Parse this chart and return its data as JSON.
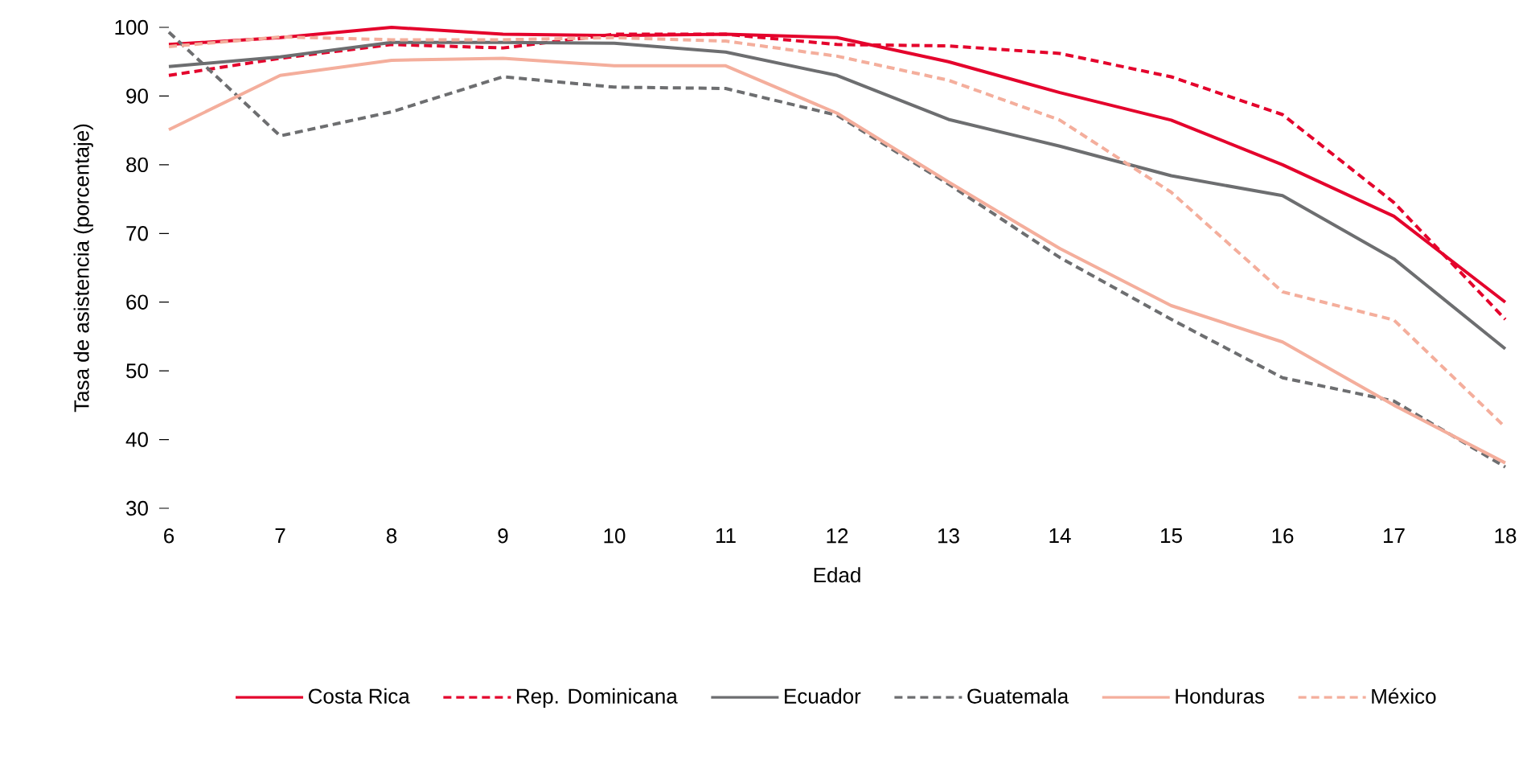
{
  "chart_data": {
    "type": "line",
    "xlabel": "Edad",
    "ylabel": "Tasa de asistencia (porcentaje)",
    "x": [
      6,
      7,
      8,
      9,
      10,
      11,
      12,
      13,
      14,
      15,
      16,
      17,
      18
    ],
    "xlim": [
      6,
      18
    ],
    "xticks": [
      6,
      7,
      8,
      9,
      10,
      11,
      12,
      13,
      14,
      15,
      16,
      17,
      18
    ],
    "ylim": [
      30,
      100
    ],
    "yticks": [
      30,
      40,
      50,
      60,
      70,
      80,
      90,
      100
    ],
    "legend": "bottom",
    "grid": false,
    "series": [
      {
        "name": "Costa Rica",
        "color": "#e4032c",
        "line_style": "solid",
        "values": [
          97.5,
          98.5,
          100,
          99,
          98.8,
          99,
          98.5,
          95,
          90.5,
          86.5,
          80,
          72.5,
          60
        ]
      },
      {
        "name": "Rep. Dominicana",
        "color": "#e4032c",
        "line_style": "dashed",
        "values": [
          93,
          95.5,
          97.5,
          97,
          99,
          99,
          97.5,
          97.3,
          96.2,
          92.8,
          87.3,
          74.5,
          57.5
        ]
      },
      {
        "name": "Ecuador",
        "color": "#6d6e70",
        "line_style": "solid",
        "values": [
          94.3,
          95.7,
          97.8,
          97.8,
          97.7,
          96.4,
          93,
          86.6,
          82.7,
          78.4,
          75.5,
          66.3,
          53.2
        ]
      },
      {
        "name": "Guatemala",
        "color": "#6d6e70",
        "line_style": "dashed",
        "values": [
          99.3,
          84.2,
          87.7,
          92.8,
          91.3,
          91.1,
          87.2,
          77.2,
          66.5,
          57.5,
          49,
          45.6,
          36
        ]
      },
      {
        "name": "Honduras",
        "color": "#f4ae9c",
        "line_style": "solid",
        "values": [
          85.1,
          93,
          95.2,
          95.5,
          94.4,
          94.4,
          87.5,
          77.5,
          67.8,
          59.5,
          54.2,
          45,
          36.6
        ]
      },
      {
        "name": "México",
        "color": "#f4ae9c",
        "line_style": "dashed",
        "values": [
          97.2,
          98.6,
          98.2,
          98.2,
          98.5,
          98,
          95.8,
          92.3,
          86.5,
          76,
          61.5,
          57.4,
          41.8
        ]
      }
    ]
  }
}
